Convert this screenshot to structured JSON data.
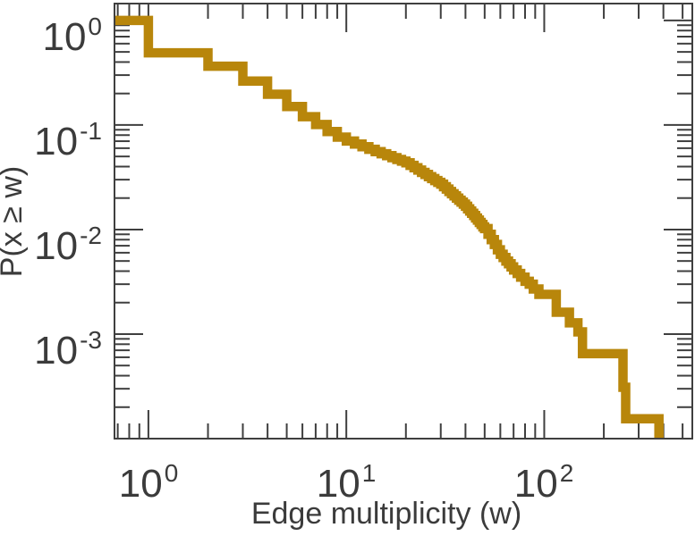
{
  "chart_data": {
    "type": "line",
    "subtype": "ccdf-step",
    "title": "",
    "xlabel": "Edge multiplicity (w)",
    "ylabel": "P(x ≥ w)",
    "x_scale": "log",
    "y_scale": "log",
    "xlim": [
      0.674,
      560
    ],
    "ylim": [
      0.0001,
      1.45
    ],
    "grid": false,
    "legend": "none",
    "line_color": "#B8860B",
    "line_width": 10.5,
    "axis_color": "#3f3f3f",
    "text_color": "#3b3b3b",
    "x_tick_labels": [
      {
        "value": 1,
        "base": "10",
        "exp": "0"
      },
      {
        "value": 10,
        "base": "10",
        "exp": "1"
      },
      {
        "value": 100,
        "base": "10",
        "exp": "2"
      }
    ],
    "y_tick_labels": [
      {
        "value": 1,
        "base": "10",
        "exp": "0"
      },
      {
        "value": 0.1,
        "base": "10",
        "exp": "-1"
      },
      {
        "value": 0.01,
        "base": "10",
        "exp": "-2"
      },
      {
        "value": 0.001,
        "base": "10",
        "exp": "-3"
      }
    ],
    "x_major_ticks": [
      1,
      10,
      100
    ],
    "y_major_ticks": [
      1,
      0.1,
      0.01,
      0.001,
      0.0001
    ],
    "steps": [
      [
        0.674,
        1.0
      ],
      [
        1,
        0.49
      ],
      [
        2,
        0.365
      ],
      [
        3,
        0.263
      ],
      [
        4,
        0.197
      ],
      [
        5,
        0.15
      ],
      [
        6,
        0.12
      ],
      [
        7,
        0.101
      ],
      [
        8,
        0.0865
      ],
      [
        9,
        0.0766
      ],
      [
        10,
        0.0702
      ],
      [
        11,
        0.0657
      ],
      [
        12,
        0.0619
      ],
      [
        13,
        0.0586
      ],
      [
        14,
        0.0557
      ],
      [
        15,
        0.0531
      ],
      [
        16,
        0.0508
      ],
      [
        17,
        0.0487
      ],
      [
        18,
        0.0468
      ],
      [
        19,
        0.0451
      ],
      [
        20,
        0.0435
      ],
      [
        21,
        0.0411
      ],
      [
        22,
        0.039
      ],
      [
        23,
        0.037
      ],
      [
        24,
        0.0352
      ],
      [
        25,
        0.0336
      ],
      [
        26,
        0.0321
      ],
      [
        27,
        0.0307
      ],
      [
        28,
        0.0294
      ],
      [
        29,
        0.0283
      ],
      [
        30,
        0.0272
      ],
      [
        31,
        0.0257
      ],
      [
        32,
        0.0244
      ],
      [
        33,
        0.0231
      ],
      [
        34,
        0.022
      ],
      [
        35,
        0.021
      ],
      [
        36,
        0.02
      ],
      [
        37,
        0.0191
      ],
      [
        38,
        0.0183
      ],
      [
        39,
        0.0175
      ],
      [
        40,
        0.0167
      ],
      [
        41,
        0.0158
      ],
      [
        42,
        0.015
      ],
      [
        43,
        0.0143
      ],
      [
        44,
        0.0136
      ],
      [
        45,
        0.0129
      ],
      [
        46,
        0.0123
      ],
      [
        47,
        0.0117
      ],
      [
        48,
        0.0112
      ],
      [
        49,
        0.0106
      ],
      [
        50,
        0.0102
      ],
      [
        52,
        0.009
      ],
      [
        54,
        0.008
      ],
      [
        56,
        0.0072
      ],
      [
        58,
        0.0064
      ],
      [
        60,
        0.0058
      ],
      [
        62,
        0.0054
      ],
      [
        64,
        0.005
      ],
      [
        66,
        0.0047
      ],
      [
        68,
        0.0044
      ],
      [
        70,
        0.0041
      ],
      [
        73,
        0.0038
      ],
      [
        76,
        0.0035
      ],
      [
        80,
        0.0032
      ],
      [
        84,
        0.003
      ],
      [
        88,
        0.0027
      ],
      [
        94,
        0.0024
      ],
      [
        115,
        0.00162
      ],
      [
        134,
        0.00128
      ],
      [
        148,
        0.00105
      ],
      [
        156,
        0.00065
      ],
      [
        250,
        0.00031
      ],
      [
        258,
        0.000155
      ],
      [
        380,
        0.0001
      ]
    ]
  }
}
